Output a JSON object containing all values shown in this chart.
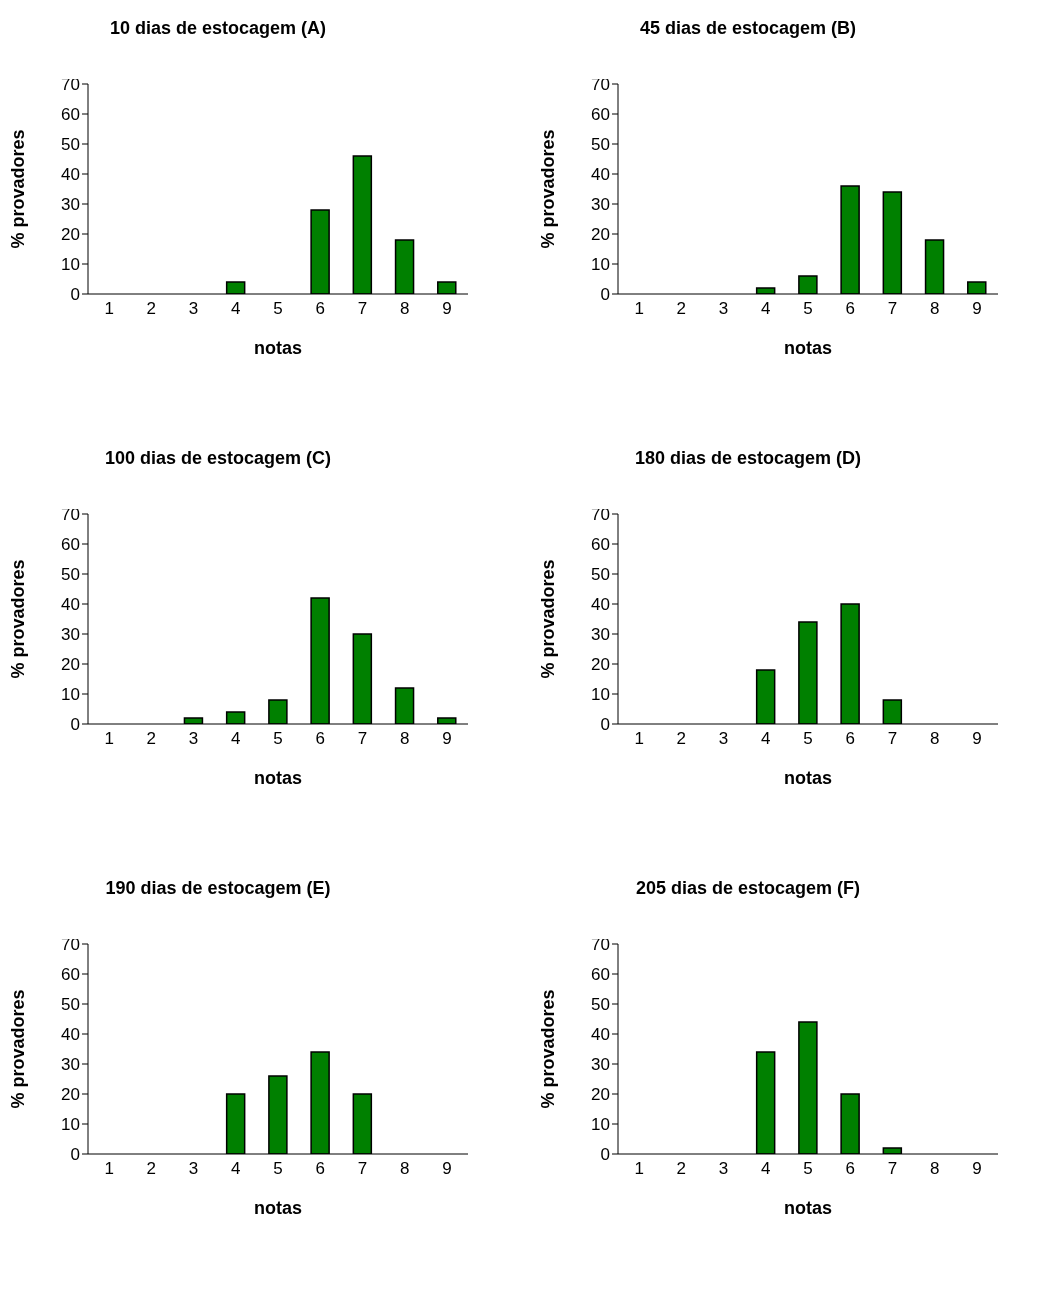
{
  "chart_data": [
    {
      "type": "bar",
      "title": "10 dias de estocagem (A)",
      "xlabel": "notas",
      "ylabel": "% provadores",
      "categories": [
        "1",
        "2",
        "3",
        "4",
        "5",
        "6",
        "7",
        "8",
        "9"
      ],
      "values": [
        0,
        0,
        0,
        4,
        0,
        28,
        46,
        18,
        4
      ],
      "color": "#008000",
      "ylim": [
        0,
        70
      ],
      "yticks": [
        0,
        10,
        20,
        30,
        40,
        50,
        60,
        70
      ],
      "grid": false,
      "legend": false
    },
    {
      "type": "bar",
      "title": "45 dias de estocagem (B)",
      "xlabel": "notas",
      "ylabel": "% provadores",
      "categories": [
        "1",
        "2",
        "3",
        "4",
        "5",
        "6",
        "7",
        "8",
        "9"
      ],
      "values": [
        0,
        0,
        0,
        2,
        6,
        36,
        34,
        18,
        4
      ],
      "color": "#008000",
      "ylim": [
        0,
        70
      ],
      "yticks": [
        0,
        10,
        20,
        30,
        40,
        50,
        60,
        70
      ],
      "grid": false,
      "legend": false
    },
    {
      "type": "bar",
      "title": "100 dias de estocagem (C)",
      "xlabel": "notas",
      "ylabel": "% provadores",
      "categories": [
        "1",
        "2",
        "3",
        "4",
        "5",
        "6",
        "7",
        "8",
        "9"
      ],
      "values": [
        0,
        0,
        2,
        4,
        8,
        42,
        30,
        12,
        2
      ],
      "color": "#008000",
      "ylim": [
        0,
        70
      ],
      "yticks": [
        0,
        10,
        20,
        30,
        40,
        50,
        60,
        70
      ],
      "grid": false,
      "legend": false
    },
    {
      "type": "bar",
      "title": "180 dias de estocagem (D)",
      "xlabel": "notas",
      "ylabel": "% provadores",
      "categories": [
        "1",
        "2",
        "3",
        "4",
        "5",
        "6",
        "7",
        "8",
        "9"
      ],
      "values": [
        0,
        0,
        0,
        18,
        34,
        40,
        8,
        0,
        0
      ],
      "color": "#008000",
      "ylim": [
        0,
        70
      ],
      "yticks": [
        0,
        10,
        20,
        30,
        40,
        50,
        60,
        70
      ],
      "grid": false,
      "legend": false
    },
    {
      "type": "bar",
      "title": "190 dias de estocagem (E)",
      "xlabel": "notas",
      "ylabel": "% provadores",
      "categories": [
        "1",
        "2",
        "3",
        "4",
        "5",
        "6",
        "7",
        "8",
        "9"
      ],
      "values": [
        0,
        0,
        0,
        20,
        26,
        34,
        20,
        0,
        0
      ],
      "color": "#008000",
      "ylim": [
        0,
        70
      ],
      "yticks": [
        0,
        10,
        20,
        30,
        40,
        50,
        60,
        70
      ],
      "grid": false,
      "legend": false
    },
    {
      "type": "bar",
      "title": "205 dias de estocagem (F)",
      "xlabel": "notas",
      "ylabel": "% provadores",
      "categories": [
        "1",
        "2",
        "3",
        "4",
        "5",
        "6",
        "7",
        "8",
        "9"
      ],
      "values": [
        0,
        0,
        0,
        34,
        44,
        20,
        2,
        0,
        0
      ],
      "color": "#008000",
      "ylim": [
        0,
        70
      ],
      "yticks": [
        0,
        10,
        20,
        30,
        40,
        50,
        60,
        70
      ],
      "grid": false,
      "legend": false
    }
  ]
}
